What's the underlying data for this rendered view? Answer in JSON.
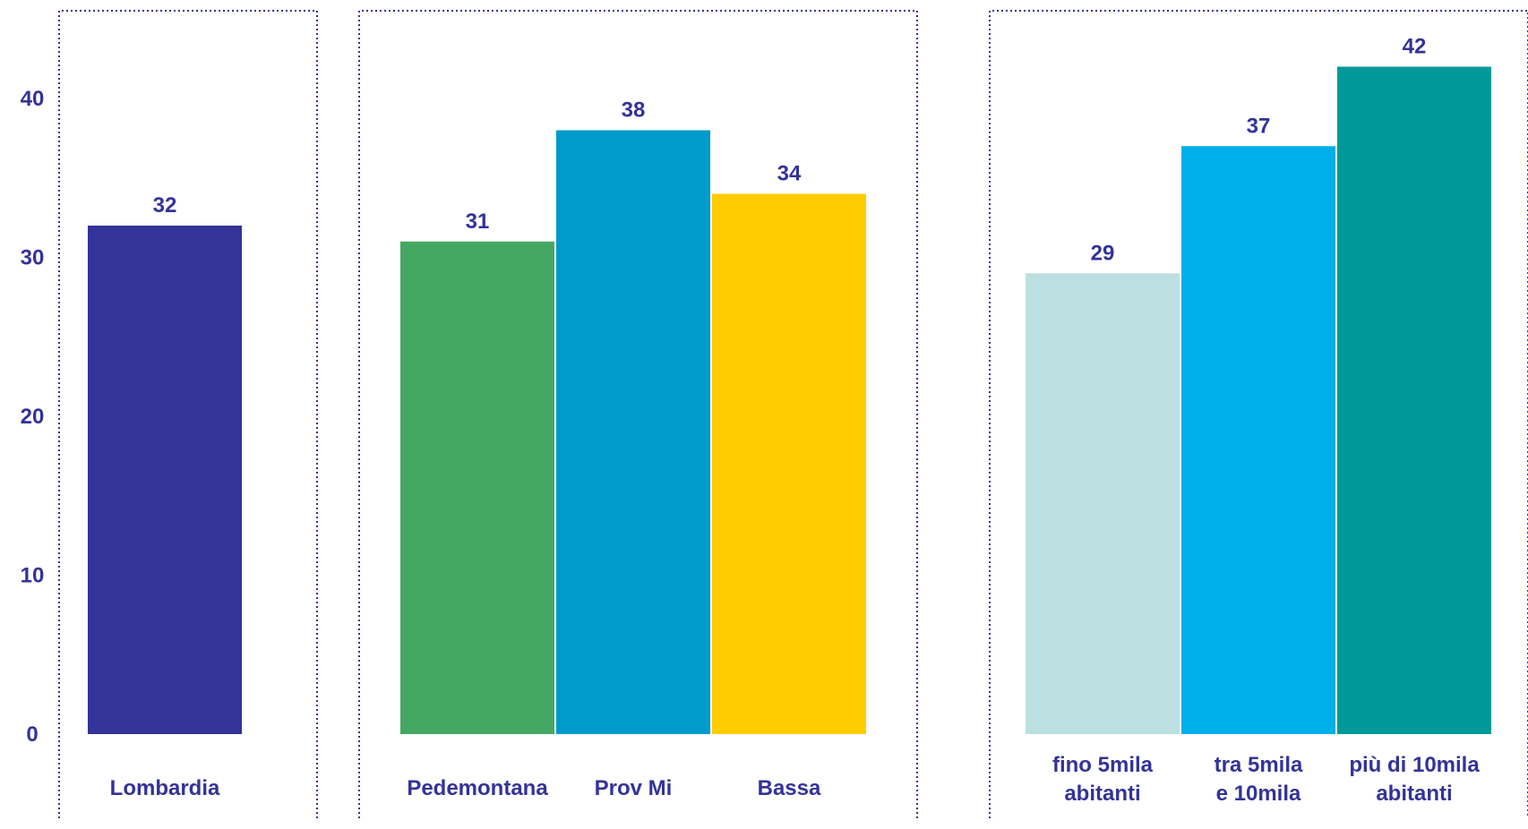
{
  "chart_data": {
    "type": "bar",
    "ylim": [
      0,
      45
    ],
    "yticks": [
      0,
      10,
      20,
      30,
      40
    ],
    "grid": false,
    "label_color": "#333399",
    "frame_color": "#333399",
    "panels": [
      {
        "bars": [
          {
            "category": [
              "Lombardia"
            ],
            "value": 32,
            "color": "#333399"
          }
        ]
      },
      {
        "bars": [
          {
            "category": [
              "Pedemontana"
            ],
            "value": 31,
            "color": "#45A862"
          },
          {
            "category": [
              "Prov Mi"
            ],
            "value": 38,
            "color": "#009BCC"
          },
          {
            "category": [
              "Bassa"
            ],
            "value": 34,
            "color": "#FFCC00"
          }
        ]
      },
      {
        "bars": [
          {
            "category": [
              "fino 5mila",
              "abitanti"
            ],
            "value": 29,
            "color": "#BCE0E2"
          },
          {
            "category": [
              "tra 5mila",
              "e 10mila"
            ],
            "value": 37,
            "color": "#00AEEA"
          },
          {
            "category": [
              "più di 10mila",
              "abitanti"
            ],
            "value": 42,
            "color": "#009999"
          }
        ]
      }
    ]
  }
}
